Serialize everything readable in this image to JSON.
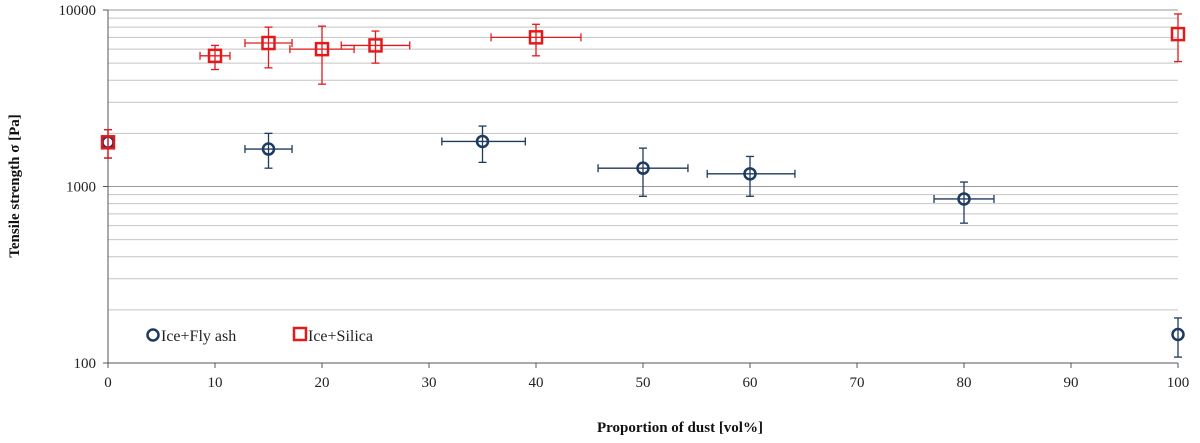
{
  "chart_data": {
    "type": "scatter",
    "title": "",
    "xlabel": "Proportion of dust [vol%]",
    "ylabel": "Tensile strength σ [Pa]",
    "xlim": [
      0,
      100
    ],
    "ylim": [
      100,
      10000
    ],
    "yscale": "log",
    "x_ticks": [
      "0",
      "10",
      "20",
      "30",
      "40",
      "50",
      "60",
      "70",
      "80",
      "90",
      "100"
    ],
    "y_ticks": [
      "100",
      "1000",
      "10000"
    ],
    "grid": true,
    "legend_position": "bottom-left",
    "series": [
      {
        "name": "Ice+Fly ash",
        "marker": "circle",
        "color": "#1f3a5f",
        "points": [
          {
            "x": 0,
            "y": 1780,
            "x_err": [
              0,
              0
            ],
            "y_err": [
              1450,
              2100
            ]
          },
          {
            "x": 15,
            "y": 1630,
            "x_err": [
              12.8,
              17.2
            ],
            "y_err": [
              1270,
              2000
            ]
          },
          {
            "x": 35,
            "y": 1800,
            "x_err": [
              31.2,
              39.0
            ],
            "y_err": [
              1370,
              2200
            ]
          },
          {
            "x": 50,
            "y": 1270,
            "x_err": [
              45.8,
              54.2
            ],
            "y_err": [
              880,
              1650
            ]
          },
          {
            "x": 60,
            "y": 1180,
            "x_err": [
              56.0,
              64.2
            ],
            "y_err": [
              880,
              1480
            ]
          },
          {
            "x": 80,
            "y": 850,
            "x_err": [
              77.2,
              82.8
            ],
            "y_err": [
              620,
              1060
            ]
          },
          {
            "x": 100,
            "y": 145,
            "x_err": [
              100,
              100
            ],
            "y_err": [
              108,
              180
            ]
          }
        ]
      },
      {
        "name": "Ice+Silica",
        "marker": "square",
        "color": "#e31a1c",
        "points": [
          {
            "x": 0,
            "y": 1780,
            "x_err": [
              0,
              0
            ],
            "y_err": [
              1450,
              2100
            ]
          },
          {
            "x": 10,
            "y": 5500,
            "x_err": [
              8.6,
              11.4
            ],
            "y_err": [
              4600,
              6300
            ]
          },
          {
            "x": 15,
            "y": 6500,
            "x_err": [
              12.8,
              17.2
            ],
            "y_err": [
              4700,
              8000
            ]
          },
          {
            "x": 20,
            "y": 6000,
            "x_err": [
              17.0,
              23.0
            ],
            "y_err": [
              3800,
              8100
            ]
          },
          {
            "x": 25,
            "y": 6300,
            "x_err": [
              21.8,
              28.2
            ],
            "y_err": [
              5000,
              7600
            ]
          },
          {
            "x": 40,
            "y": 7000,
            "x_err": [
              35.8,
              44.2
            ],
            "y_err": [
              5500,
              8300
            ]
          },
          {
            "x": 100,
            "y": 7300,
            "x_err": [
              100,
              100
            ],
            "y_err": [
              5100,
              9500
            ]
          }
        ]
      }
    ]
  }
}
